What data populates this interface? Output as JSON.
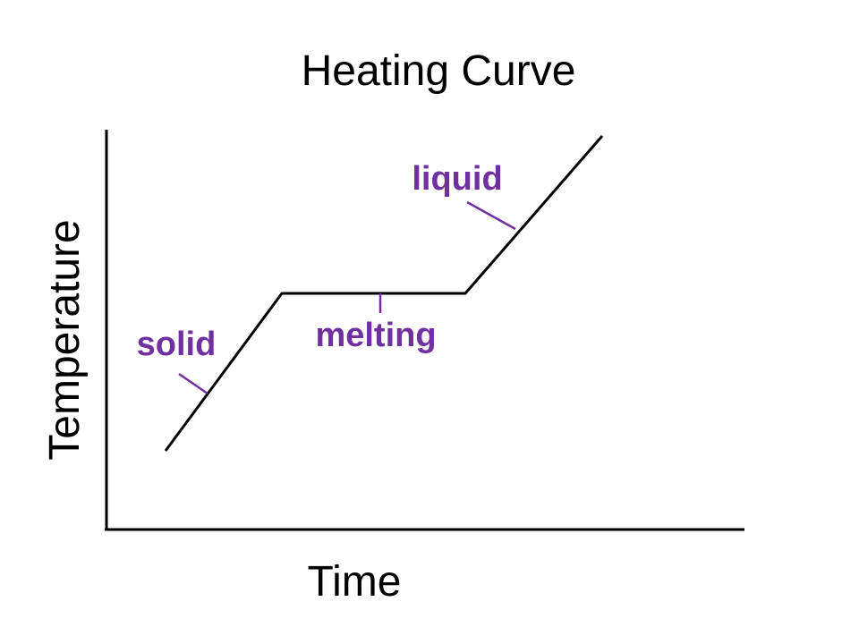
{
  "title": "Heating Curve",
  "axes": {
    "x_label": "Time",
    "y_label": "Temperature"
  },
  "annotations": {
    "solid": "solid",
    "melting": "melting",
    "liquid": "liquid"
  }
}
